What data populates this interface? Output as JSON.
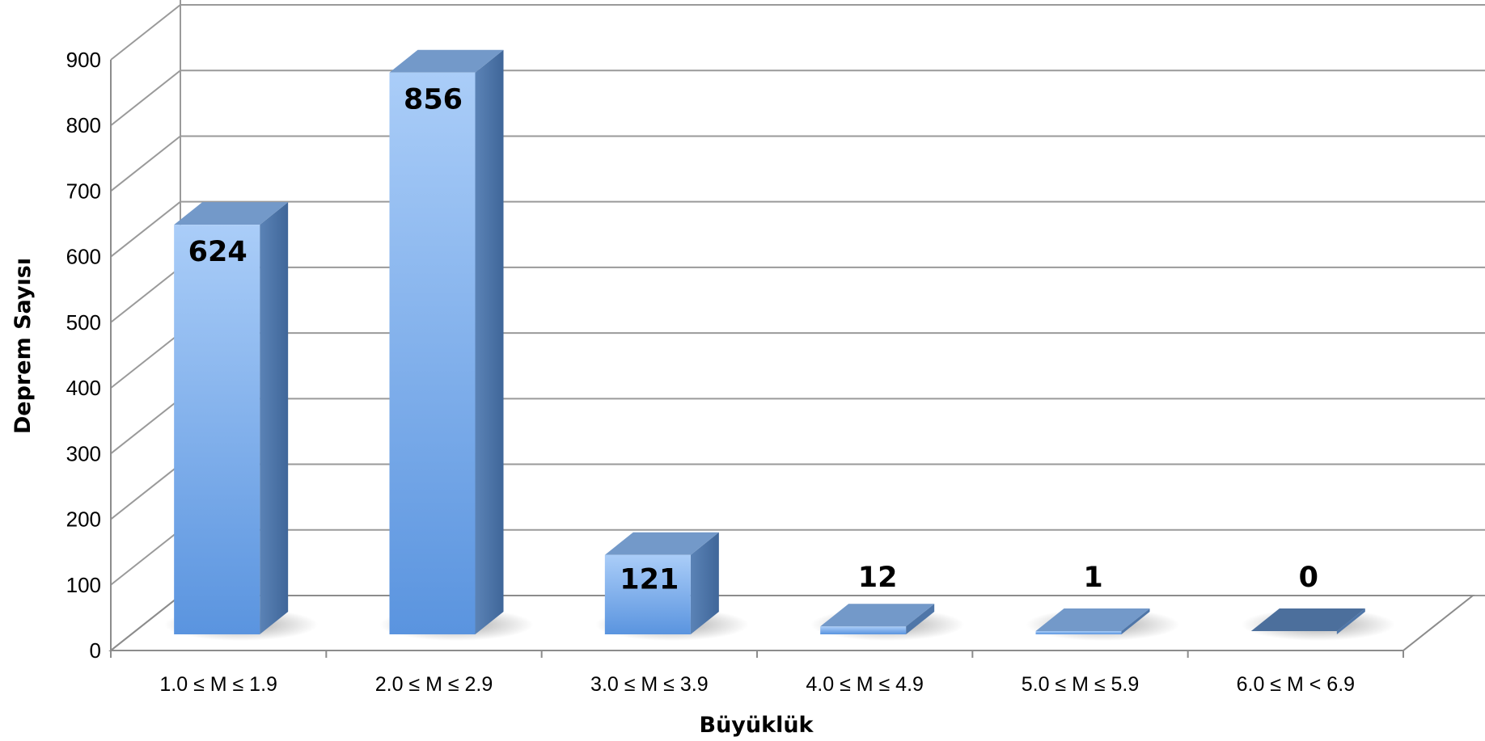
{
  "chart_data": {
    "type": "bar",
    "title": "",
    "xlabel": "Büyüklük",
    "ylabel": "Deprem Sayısı",
    "ylim": [
      0,
      900
    ],
    "yticks": [
      0,
      100,
      200,
      300,
      400,
      500,
      600,
      700,
      800,
      900
    ],
    "grid": true,
    "legend": "none",
    "categories": [
      "1.0 ≤ M ≤ 1.9",
      "2.0 ≤ M ≤ 2.9",
      "3.0 ≤ M ≤ 3.9",
      "4.0 ≤ M ≤ 4.9",
      "5.0 ≤ M ≤ 5.9",
      "6.0 ≤ M < 6.9"
    ],
    "values": [
      624,
      856,
      121,
      12,
      1,
      0
    ],
    "data_labels": [
      "624",
      "856",
      "121",
      "12",
      "1",
      "0"
    ],
    "style": "3d-column",
    "colors": {
      "bar_front_light": "#a9ccf7",
      "bar_front_dark": "#5f97e0",
      "bar_side": "#4f76a8",
      "bar_top": "#7399c9",
      "grid": "#9a9a9a"
    }
  }
}
